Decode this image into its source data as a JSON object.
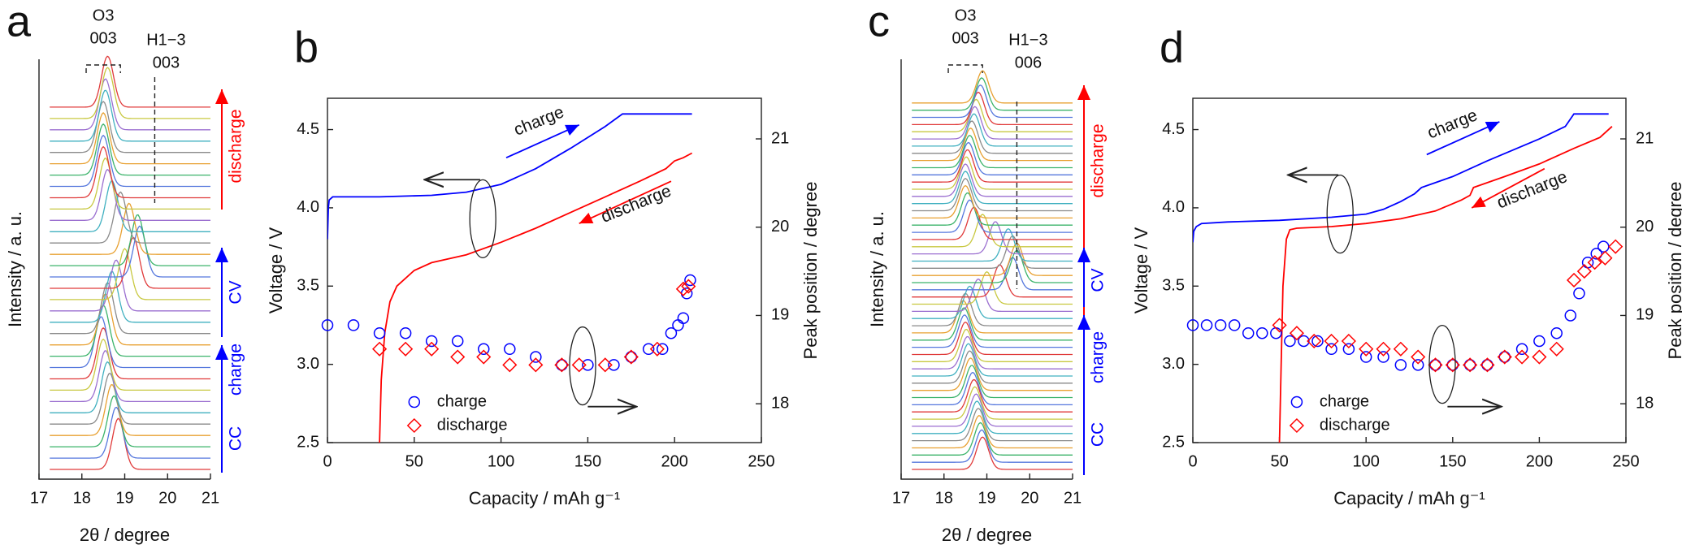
{
  "chart_data": [
    {
      "type": "waterfall",
      "panel_label": "a",
      "xlabel": "2θ  / degree",
      "ylabel": "Intensity  / a. u.",
      "xlim": [
        17,
        21
      ],
      "xticks": [
        17,
        18,
        19,
        20,
        21
      ],
      "peak_labels": [
        "O3",
        "003",
        "H1−3",
        "003"
      ],
      "segments": [
        {
          "labels": [
            "discharge"
          ],
          "color": "#ff0000"
        },
        {
          "labels": [
            "CV"
          ],
          "color": "#0000ff"
        },
        {
          "labels": [
            "CC",
            "charge"
          ],
          "color": "#0000ff"
        }
      ],
      "colors": [
        "#e03a3a",
        "#5577dd",
        "#3bb36a",
        "#e8a030",
        "#8a8a8a",
        "#40b0c0",
        "#9b6fd0",
        "#c8c840"
      ],
      "peak_positions": [
        18.85,
        18.8,
        18.75,
        18.7,
        18.65,
        18.6,
        18.55,
        18.5,
        18.5,
        18.45,
        18.5,
        18.55,
        18.6,
        18.7,
        18.8,
        19.0,
        19.2,
        19.35,
        19.3,
        19.1,
        18.9,
        18.7,
        18.6,
        18.55,
        18.5,
        18.5,
        18.5,
        18.5,
        18.5,
        18.55,
        18.55,
        18.6,
        18.6
      ]
    },
    {
      "type": "line",
      "panel_label": "b",
      "xlabel": "Capacity  / mAh g⁻¹",
      "ylabel": "Voltage  / V",
      "y2label": "Peak position  / degree",
      "xlim": [
        0,
        250
      ],
      "xticks": [
        0,
        50,
        100,
        150,
        200,
        250
      ],
      "ylim": [
        2.5,
        4.7
      ],
      "yticks": [
        2.5,
        {
          "value": 3,
          "label": "3.0"
        },
        3.5,
        {
          "value": 4,
          "label": "4.0"
        },
        4.5
      ],
      "y2lim": [
        17.56,
        21.46
      ],
      "y2ticks": [
        18,
        19,
        20,
        21
      ],
      "annotations": [
        "charge",
        "discharge"
      ],
      "lines": [
        {
          "color": "#0000ff",
          "x": [
            0,
            0.5,
            1,
            3,
            10,
            30,
            60,
            80,
            100,
            120,
            140,
            160,
            170,
            210
          ],
          "values": [
            3.8,
            4.0,
            4.05,
            4.07,
            4.07,
            4.07,
            4.08,
            4.1,
            4.15,
            4.25,
            4.38,
            4.52,
            4.6,
            4.6
          ]
        },
        {
          "color": "#ff0000",
          "x": [
            30,
            31,
            33,
            36,
            40,
            50,
            60,
            80,
            100,
            120,
            140,
            160,
            180,
            195,
            200,
            205,
            210
          ],
          "values": [
            2.5,
            2.9,
            3.2,
            3.4,
            3.5,
            3.6,
            3.65,
            3.7,
            3.78,
            3.87,
            3.97,
            4.07,
            4.17,
            4.25,
            4.3,
            4.32,
            4.35
          ]
        }
      ],
      "series": [
        {
          "name": "charge",
          "color": "#0000ff",
          "marker": "circle",
          "axis": "y2",
          "x": [
            0,
            15,
            30,
            45,
            60,
            75,
            90,
            105,
            120,
            135,
            150,
            165,
            175,
            185,
            193,
            198,
            202,
            205,
            207,
            209
          ],
          "values": [
            18.89,
            18.89,
            18.8,
            18.8,
            18.71,
            18.71,
            18.62,
            18.62,
            18.53,
            18.44,
            18.44,
            18.44,
            18.53,
            18.62,
            18.62,
            18.8,
            18.89,
            18.97,
            19.25,
            19.4
          ]
        },
        {
          "name": "discharge",
          "color": "#ff0000",
          "marker": "diamond",
          "axis": "y2",
          "x": [
            30,
            45,
            60,
            75,
            90,
            105,
            120,
            135,
            145,
            160,
            175,
            190,
            205,
            208
          ],
          "values": [
            18.62,
            18.62,
            18.62,
            18.53,
            18.53,
            18.44,
            18.44,
            18.44,
            18.44,
            18.44,
            18.53,
            18.62,
            19.3,
            19.33
          ]
        }
      ],
      "legend": "lower left"
    },
    {
      "type": "waterfall",
      "panel_label": "c",
      "xlabel": "2θ  / degree",
      "ylabel": "Intensity  / a. u.",
      "xlim": [
        17,
        21
      ],
      "xticks": [
        17,
        18,
        19,
        20,
        21
      ],
      "peak_labels": [
        "O3",
        "003",
        "H1−3",
        "006"
      ],
      "segments": [
        {
          "labels": [
            "discharge"
          ],
          "color": "#ff0000"
        },
        {
          "labels": [
            "CV"
          ],
          "color": "#0000ff"
        },
        {
          "labels": [
            "CC",
            "charge"
          ],
          "color": "#0000ff"
        }
      ],
      "colors": [
        "#e03a3a",
        "#5577dd",
        "#3bb36a",
        "#e8a030",
        "#8a8a8a",
        "#40b0c0",
        "#9b6fd0",
        "#c8c840"
      ],
      "peak_positions": [
        18.9,
        18.88,
        18.85,
        18.82,
        18.8,
        18.77,
        18.75,
        18.72,
        18.7,
        18.67,
        18.65,
        18.62,
        18.6,
        18.57,
        18.55,
        18.52,
        18.5,
        18.48,
        18.47,
        18.45,
        18.5,
        18.6,
        18.8,
        19.0,
        19.3,
        19.6,
        19.7,
        19.7,
        19.6,
        19.5,
        19.2,
        18.9,
        18.7,
        18.6,
        18.55,
        18.5,
        18.5,
        18.5,
        18.5,
        18.52,
        18.55,
        18.57,
        18.6,
        18.62,
        18.65,
        18.7,
        18.72,
        18.75,
        18.8,
        18.85,
        18.88,
        18.9
      ]
    },
    {
      "type": "line",
      "panel_label": "d",
      "xlabel": "Capacity  / mAh g⁻¹",
      "ylabel": "Voltage  / V",
      "y2label": "Peak position  / degree",
      "xlim": [
        0,
        250
      ],
      "xticks": [
        0,
        50,
        100,
        150,
        200,
        250
      ],
      "ylim": [
        2.5,
        4.7
      ],
      "yticks": [
        2.5,
        {
          "value": 3,
          "label": "3.0"
        },
        3.5,
        {
          "value": 4,
          "label": "4.0"
        },
        4.5
      ],
      "y2lim": [
        17.56,
        21.46
      ],
      "y2ticks": [
        18,
        19,
        20,
        21
      ],
      "annotations": [
        "charge",
        "discharge"
      ],
      "lines": [
        {
          "color": "#0000ff",
          "x": [
            0,
            0.5,
            2,
            5,
            20,
            50,
            80,
            100,
            110,
            120,
            128,
            132,
            150,
            170,
            200,
            215,
            220,
            240
          ],
          "values": [
            3.78,
            3.85,
            3.88,
            3.9,
            3.91,
            3.92,
            3.94,
            3.96,
            3.99,
            4.04,
            4.09,
            4.13,
            4.2,
            4.3,
            4.44,
            4.52,
            4.6,
            4.6
          ]
        },
        {
          "color": "#ff0000",
          "x": [
            50,
            51,
            52,
            54,
            56,
            60,
            80,
            100,
            120,
            140,
            155,
            160,
            162,
            180,
            200,
            220,
            235,
            242
          ],
          "values": [
            2.5,
            3.0,
            3.5,
            3.8,
            3.86,
            3.87,
            3.88,
            3.9,
            3.93,
            3.98,
            4.05,
            4.08,
            4.13,
            4.2,
            4.28,
            4.38,
            4.45,
            4.52
          ]
        }
      ],
      "series": [
        {
          "name": "charge",
          "color": "#0000ff",
          "marker": "circle",
          "axis": "y2",
          "x": [
            0,
            8,
            16,
            24,
            32,
            40,
            48,
            56,
            64,
            72,
            80,
            90,
            100,
            110,
            120,
            130,
            140,
            150,
            160,
            170,
            180,
            190,
            200,
            210,
            218,
            223,
            228,
            233,
            237
          ],
          "values": [
            18.89,
            18.89,
            18.89,
            18.89,
            18.8,
            18.8,
            18.8,
            18.71,
            18.71,
            18.71,
            18.62,
            18.62,
            18.53,
            18.53,
            18.44,
            18.44,
            18.44,
            18.44,
            18.44,
            18.44,
            18.53,
            18.62,
            18.71,
            18.8,
            19.0,
            19.25,
            19.6,
            19.7,
            19.78
          ]
        },
        {
          "name": "discharge",
          "color": "#ff0000",
          "marker": "diamond",
          "axis": "y2",
          "x": [
            50,
            60,
            70,
            80,
            90,
            100,
            110,
            120,
            130,
            140,
            150,
            160,
            170,
            180,
            190,
            200,
            210,
            220,
            226,
            232,
            238,
            244
          ],
          "values": [
            18.89,
            18.8,
            18.71,
            18.71,
            18.71,
            18.62,
            18.62,
            18.62,
            18.53,
            18.44,
            18.44,
            18.44,
            18.44,
            18.53,
            18.53,
            18.53,
            18.62,
            19.4,
            19.5,
            19.6,
            19.65,
            19.78
          ]
        }
      ],
      "legend": "lower left"
    }
  ]
}
